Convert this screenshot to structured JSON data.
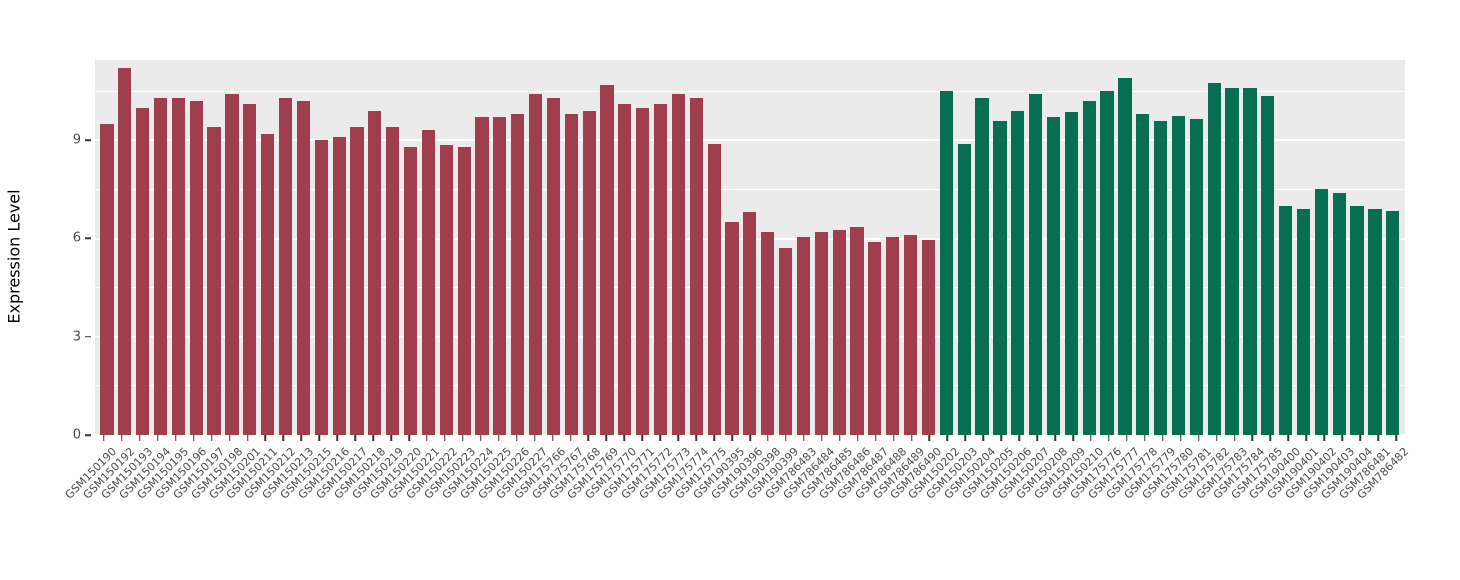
{
  "figure": {
    "ylabel": "Expression Level"
  },
  "chart_data": {
    "type": "bar",
    "title": "",
    "xlabel": "",
    "ylabel": "Expression Level",
    "ylim": [
      0,
      11.45
    ],
    "yticks": [
      0,
      3,
      6,
      9
    ],
    "yticks_minor": [
      1.5,
      4.5,
      7.5,
      10.5
    ],
    "grid": true,
    "legend": "none",
    "plot_bg": "#ebebeb",
    "group_split_index": 47,
    "colors": {
      "group1": "#9e3e4e",
      "group2": "#076e51"
    },
    "categories": [
      "GSM150190",
      "GSM150192",
      "GSM150193",
      "GSM150194",
      "GSM150195",
      "GSM150196",
      "GSM150197",
      "GSM150198",
      "GSM150201",
      "GSM150211",
      "GSM150212",
      "GSM150213",
      "GSM150215",
      "GSM150216",
      "GSM150217",
      "GSM150218",
      "GSM150219",
      "GSM150220",
      "GSM150221",
      "GSM150222",
      "GSM150223",
      "GSM150224",
      "GSM150225",
      "GSM150226",
      "GSM150227",
      "GSM175766",
      "GSM175767",
      "GSM175768",
      "GSM175769",
      "GSM175770",
      "GSM175771",
      "GSM175772",
      "GSM175773",
      "GSM175774",
      "GSM175775",
      "GSM190395",
      "GSM190396",
      "GSM190398",
      "GSM190399",
      "GSM786483",
      "GSM786484",
      "GSM786485",
      "GSM786486",
      "GSM786487",
      "GSM786488",
      "GSM786489",
      "GSM786490",
      "GSM150202",
      "GSM150203",
      "GSM150204",
      "GSM150205",
      "GSM150206",
      "GSM150207",
      "GSM150208",
      "GSM150209",
      "GSM150210",
      "GSM175776",
      "GSM175777",
      "GSM175778",
      "GSM175779",
      "GSM175780",
      "GSM175781",
      "GSM175782",
      "GSM175783",
      "GSM175784",
      "GSM175785",
      "GSM190400",
      "GSM190401",
      "GSM190402",
      "GSM190403",
      "GSM190404",
      "GSM786481",
      "GSM786482"
    ],
    "values": [
      9.5,
      11.2,
      10.0,
      10.3,
      10.3,
      10.2,
      9.4,
      10.4,
      10.1,
      9.2,
      10.3,
      10.2,
      9.0,
      9.1,
      9.4,
      9.9,
      9.4,
      8.8,
      9.3,
      8.85,
      8.8,
      9.7,
      9.7,
      9.8,
      10.4,
      10.3,
      9.8,
      9.9,
      10.7,
      10.1,
      10.0,
      10.1,
      10.4,
      10.3,
      8.9,
      6.5,
      6.8,
      6.2,
      5.7,
      6.05,
      6.2,
      6.25,
      6.35,
      5.9,
      6.05,
      6.1,
      5.95,
      10.5,
      8.9,
      10.3,
      9.6,
      9.9,
      10.4,
      9.7,
      9.85,
      10.2,
      10.5,
      10.9,
      9.8,
      9.6,
      9.75,
      9.65,
      10.75,
      10.6,
      10.6,
      10.35,
      7.0,
      6.9,
      7.5,
      7.4,
      7.0,
      6.9,
      6.85
    ]
  }
}
